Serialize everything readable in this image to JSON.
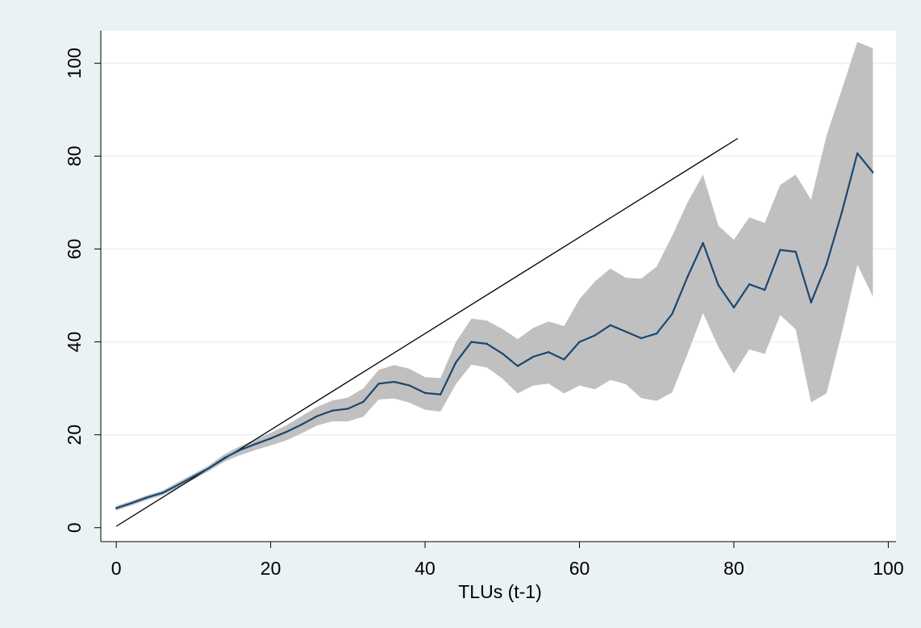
{
  "chart_data": {
    "type": "line",
    "title": "",
    "xlabel": "TLUs (t-1)",
    "ylabel": "",
    "xlim": [
      -2,
      101
    ],
    "ylim": [
      -3,
      107
    ],
    "grid": true,
    "xticks": [
      0,
      20,
      40,
      60,
      80,
      100
    ],
    "yticks": [
      0,
      20,
      40,
      60,
      80,
      100
    ],
    "xtick_labels": [
      "0",
      "20",
      "40",
      "60",
      "80",
      "100"
    ],
    "ytick_labels": [
      "0",
      "20",
      "40",
      "60",
      "80",
      "100"
    ],
    "colors": {
      "background": "#eaf2f3",
      "plot_area": "#ffffff",
      "grid": "#eaf2f3",
      "ci_band": "#c0c0c0",
      "mean_line": "#1a476f",
      "reference_line": "#000000"
    },
    "series": [
      {
        "role": "mean",
        "x": [
          0,
          2,
          4,
          6,
          8,
          10,
          12,
          14,
          16,
          18,
          20,
          22,
          24,
          26,
          28,
          30,
          32,
          34,
          36,
          38,
          40,
          42,
          44,
          46,
          48,
          50,
          52,
          54,
          56,
          58,
          60,
          62,
          64,
          66,
          68,
          70,
          72,
          74,
          76,
          78,
          80,
          82,
          84,
          86,
          88,
          90,
          92,
          94,
          96,
          98
        ],
        "y": [
          4.2,
          5.3,
          6.5,
          7.5,
          9.2,
          11.0,
          12.8,
          15.0,
          16.7,
          18.0,
          19.2,
          20.6,
          22.2,
          24.0,
          25.2,
          25.6,
          27.1,
          31.0,
          31.4,
          30.6,
          29.0,
          28.7,
          35.6,
          40.0,
          39.6,
          37.5,
          34.8,
          36.8,
          37.8,
          36.2,
          40.0,
          41.4,
          43.6,
          42.2,
          40.8,
          41.8,
          46.0,
          54.0,
          61.3,
          52.2,
          47.4,
          52.4,
          51.2,
          59.8,
          59.4,
          48.5,
          56.7,
          68.0,
          80.6,
          76.5
        ]
      },
      {
        "role": "ci-upper",
        "x": [
          0,
          2,
          4,
          6,
          8,
          10,
          12,
          14,
          16,
          18,
          20,
          22,
          24,
          26,
          28,
          30,
          32,
          34,
          36,
          38,
          40,
          42,
          44,
          46,
          48,
          50,
          52,
          54,
          56,
          58,
          60,
          62,
          64,
          66,
          68,
          70,
          72,
          74,
          76,
          78,
          80,
          82,
          84,
          86,
          88,
          90,
          92,
          94,
          96,
          98
        ],
        "y": [
          4.7,
          5.8,
          7.0,
          8.0,
          9.8,
          11.6,
          13.4,
          15.8,
          17.5,
          19.0,
          20.4,
          22.0,
          24.0,
          26.0,
          27.4,
          28.0,
          30.0,
          34.0,
          35.0,
          34.2,
          32.4,
          32.2,
          40.0,
          45.0,
          44.6,
          42.8,
          40.6,
          43.0,
          44.4,
          43.4,
          49.2,
          53.0,
          55.8,
          53.8,
          53.6,
          56.2,
          62.8,
          70.0,
          76.0,
          65.0,
          62.0,
          66.8,
          65.6,
          73.8,
          76.0,
          70.6,
          84.4,
          94.4,
          104.6,
          103.2
        ]
      },
      {
        "role": "ci-lower",
        "x": [
          0,
          2,
          4,
          6,
          8,
          10,
          12,
          14,
          16,
          18,
          20,
          22,
          24,
          26,
          28,
          30,
          32,
          34,
          36,
          38,
          40,
          42,
          44,
          46,
          48,
          50,
          52,
          54,
          56,
          58,
          60,
          62,
          64,
          66,
          68,
          70,
          72,
          74,
          76,
          78,
          80,
          82,
          84,
          86,
          88,
          90,
          92,
          94,
          96,
          98
        ],
        "y": [
          3.7,
          4.8,
          6.0,
          7.0,
          8.6,
          10.4,
          12.2,
          14.2,
          15.6,
          16.7,
          17.7,
          18.8,
          20.3,
          22.0,
          22.9,
          22.9,
          23.9,
          27.6,
          27.8,
          26.9,
          25.4,
          25.0,
          30.9,
          35.1,
          34.5,
          32.1,
          28.9,
          30.6,
          31.0,
          28.9,
          30.6,
          29.8,
          31.8,
          30.9,
          27.9,
          27.3,
          29.1,
          37.4,
          46.2,
          38.9,
          33.2,
          38.4,
          37.4,
          45.8,
          42.7,
          27.0,
          28.9,
          42.1,
          56.6,
          49.8
        ]
      },
      {
        "role": "reference-45-degree",
        "x": [
          0,
          80.5
        ],
        "y": [
          0.3,
          83.8
        ]
      }
    ]
  }
}
